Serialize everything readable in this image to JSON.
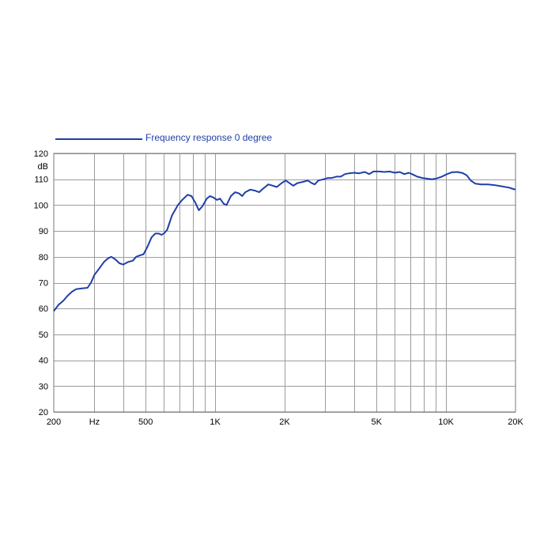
{
  "chart_data": {
    "type": "line",
    "title": "",
    "xlabel": "",
    "ylabel": "dB",
    "x_scale": "log",
    "xlim": [
      200,
      20000
    ],
    "ylim": [
      20,
      120
    ],
    "grid": true,
    "legend_position": "top-left",
    "colors": {
      "series": "#1f3fa8",
      "grid": "#9c9c9c",
      "axis": "#7a7a7a",
      "text": "#000000"
    },
    "x_ticks": [
      {
        "value": 200,
        "label": "200"
      },
      {
        "value": 300,
        "label": "Hz"
      },
      {
        "value": 500,
        "label": "500"
      },
      {
        "value": 1000,
        "label": "1K"
      },
      {
        "value": 2000,
        "label": "2K"
      },
      {
        "value": 5000,
        "label": "5K"
      },
      {
        "value": 10000,
        "label": "10K"
      },
      {
        "value": 20000,
        "label": "20K"
      }
    ],
    "x_gridlines": [
      300,
      400,
      500,
      600,
      700,
      800,
      900,
      1000,
      2000,
      3000,
      4000,
      5000,
      6000,
      7000,
      8000,
      9000,
      10000
    ],
    "y_ticks": [
      20,
      30,
      40,
      50,
      60,
      70,
      80,
      90,
      100,
      110,
      120
    ],
    "series": [
      {
        "name": "Frequency response 0 degree",
        "points": [
          [
            200,
            59
          ],
          [
            210,
            61.5
          ],
          [
            220,
            63
          ],
          [
            230,
            65
          ],
          [
            240,
            66.5
          ],
          [
            250,
            67.5
          ],
          [
            265,
            67.8
          ],
          [
            280,
            68
          ],
          [
            290,
            70
          ],
          [
            300,
            73
          ],
          [
            315,
            75.5
          ],
          [
            330,
            78
          ],
          [
            345,
            79.5
          ],
          [
            355,
            80
          ],
          [
            370,
            79
          ],
          [
            385,
            77.5
          ],
          [
            400,
            77
          ],
          [
            420,
            78
          ],
          [
            440,
            78.5
          ],
          [
            455,
            80
          ],
          [
            470,
            80.5
          ],
          [
            490,
            81
          ],
          [
            510,
            84
          ],
          [
            530,
            87.5
          ],
          [
            550,
            89
          ],
          [
            570,
            89
          ],
          [
            585,
            88.5
          ],
          [
            600,
            89
          ],
          [
            620,
            90.5
          ],
          [
            650,
            96
          ],
          [
            690,
            100
          ],
          [
            720,
            102
          ],
          [
            760,
            104
          ],
          [
            790,
            103.5
          ],
          [
            820,
            101
          ],
          [
            850,
            98
          ],
          [
            880,
            99.5
          ],
          [
            920,
            102.5
          ],
          [
            950,
            103.5
          ],
          [
            980,
            103
          ],
          [
            1020,
            102
          ],
          [
            1050,
            102.5
          ],
          [
            1090,
            100.5
          ],
          [
            1120,
            100
          ],
          [
            1170,
            103.5
          ],
          [
            1220,
            105
          ],
          [
            1270,
            104.5
          ],
          [
            1310,
            103.5
          ],
          [
            1350,
            105
          ],
          [
            1420,
            106
          ],
          [
            1500,
            105.5
          ],
          [
            1550,
            105
          ],
          [
            1620,
            106.5
          ],
          [
            1700,
            108
          ],
          [
            1780,
            107.5
          ],
          [
            1850,
            107
          ],
          [
            1940,
            108.5
          ],
          [
            2020,
            109.5
          ],
          [
            2100,
            108.5
          ],
          [
            2180,
            107.5
          ],
          [
            2270,
            108.5
          ],
          [
            2400,
            109
          ],
          [
            2520,
            109.5
          ],
          [
            2620,
            108.5
          ],
          [
            2700,
            108
          ],
          [
            2800,
            109.5
          ],
          [
            2950,
            110
          ],
          [
            3080,
            110.5
          ],
          [
            3200,
            110.5
          ],
          [
            3350,
            111
          ],
          [
            3500,
            111
          ],
          [
            3650,
            112
          ],
          [
            3800,
            112.3
          ],
          [
            4000,
            112.5
          ],
          [
            4200,
            112.3
          ],
          [
            4450,
            112.8
          ],
          [
            4650,
            112
          ],
          [
            4850,
            113
          ],
          [
            5150,
            113
          ],
          [
            5400,
            112.8
          ],
          [
            5700,
            113
          ],
          [
            6000,
            112.5
          ],
          [
            6300,
            112.8
          ],
          [
            6600,
            112
          ],
          [
            6900,
            112.5
          ],
          [
            7200,
            111.8
          ],
          [
            7500,
            111
          ],
          [
            7900,
            110.5
          ],
          [
            8300,
            110.2
          ],
          [
            8700,
            110
          ],
          [
            9100,
            110.3
          ],
          [
            9600,
            111
          ],
          [
            10100,
            112
          ],
          [
            10600,
            112.7
          ],
          [
            11200,
            112.8
          ],
          [
            11800,
            112.4
          ],
          [
            12300,
            111.5
          ],
          [
            12800,
            109.5
          ],
          [
            13400,
            108.3
          ],
          [
            14200,
            108
          ],
          [
            15200,
            108
          ],
          [
            16300,
            107.7
          ],
          [
            17300,
            107.3
          ],
          [
            18100,
            107
          ],
          [
            18700,
            106.8
          ],
          [
            19300,
            106.4
          ],
          [
            20000,
            106
          ]
        ]
      }
    ]
  }
}
